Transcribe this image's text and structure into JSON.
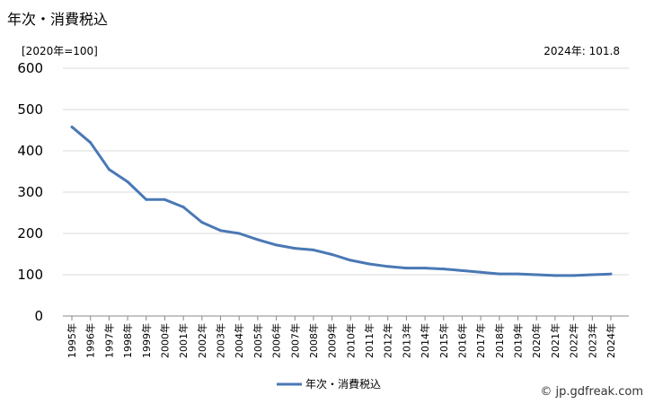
{
  "header": {
    "title": "年次・消費税込",
    "unit_label": "[2020年=100]",
    "latest_label": "2024年: 101.8"
  },
  "footer": {
    "credit": "© jp.gdfreak.com"
  },
  "colors": {
    "line": "#4a78b5",
    "grid": "#d9d9d9",
    "axis": "#888888"
  },
  "chart_data": {
    "type": "line",
    "title": "年次・消費税込",
    "ylabel": "[2020年=100]",
    "xlabel": "",
    "ylim": [
      0,
      600
    ],
    "yticks": [
      0,
      100,
      200,
      300,
      400,
      500,
      600
    ],
    "grid": true,
    "legend_position": "bottom-center",
    "categories": [
      "1995年",
      "1996年",
      "1997年",
      "1998年",
      "1999年",
      "2000年",
      "2001年",
      "2002年",
      "2003年",
      "2004年",
      "2005年",
      "2006年",
      "2007年",
      "2008年",
      "2009年",
      "2010年",
      "2011年",
      "2012年",
      "2013年",
      "2014年",
      "2015年",
      "2016年",
      "2017年",
      "2018年",
      "2019年",
      "2020年",
      "2021年",
      "2022年",
      "2023年",
      "2024年"
    ],
    "series": [
      {
        "name": "年次・消費税込",
        "values": [
          458,
          420,
          355,
          325,
          282,
          282,
          264,
          227,
          207,
          200,
          185,
          172,
          164,
          160,
          149,
          135,
          126,
          120,
          116,
          116,
          114,
          110,
          106,
          102,
          102,
          100,
          98,
          98,
          100,
          101.8
        ]
      }
    ]
  }
}
